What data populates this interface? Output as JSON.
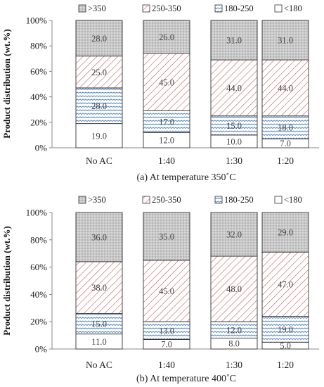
{
  "chart_data": [
    {
      "type": "bar",
      "stacked": true,
      "percent": true,
      "caption": "(a) At temperature 350˚C",
      "ylabel": "Product distribution (wt.%)",
      "yticks": [
        "0%",
        "20%",
        "40%",
        "60%",
        "80%",
        "100%"
      ],
      "ylim": [
        0,
        100
      ],
      "categories": [
        "No AC",
        "1:40",
        "1:30",
        "1:20"
      ],
      "legend": {
        "placement": "top"
      },
      "series": [
        {
          "name": "<180",
          "values": [
            19.0,
            12.0,
            10.0,
            7.0
          ],
          "labels": [
            "19.0",
            "12.0",
            "10.0",
            "7.0"
          ]
        },
        {
          "name": "180-250",
          "values": [
            28.0,
            17.0,
            15.0,
            18.0
          ],
          "labels": [
            "28.0",
            "17.0",
            "15.0",
            "18.0"
          ]
        },
        {
          "name": "250-350",
          "values": [
            25.0,
            45.0,
            44.0,
            44.0
          ],
          "labels": [
            "25.0",
            "45.0",
            "44.0",
            "44.0"
          ]
        },
        {
          "name": ">350",
          "values": [
            28.0,
            26.0,
            31.0,
            31.0
          ],
          "labels": [
            "28.0",
            "26.0",
            "31.0",
            "31.0"
          ]
        }
      ]
    },
    {
      "type": "bar",
      "stacked": true,
      "percent": true,
      "caption": "(b) At temperature 400˚C",
      "ylabel": "Product distribution (wt.%)",
      "yticks": [
        "0%",
        "20%",
        "40%",
        "60%",
        "80%",
        "100%"
      ],
      "ylim": [
        0,
        100
      ],
      "categories": [
        "No AC",
        "1:40",
        "1:30",
        "1:20"
      ],
      "legend": {
        "placement": "top"
      },
      "series": [
        {
          "name": "<180",
          "values": [
            11.0,
            7.0,
            8.0,
            5.0
          ],
          "labels": [
            "11.0",
            "7.0",
            "8.0",
            "5.0"
          ]
        },
        {
          "name": "180-250",
          "values": [
            15.0,
            13.0,
            12.0,
            19.0
          ],
          "labels": [
            "15.0",
            "13.0",
            "12.0",
            "19.0"
          ]
        },
        {
          "name": "250-350",
          "values": [
            38.0,
            45.0,
            48.0,
            47.0
          ],
          "labels": [
            "38.0",
            "45.0",
            "48.0",
            "47.0"
          ]
        },
        {
          "name": ">350",
          "values": [
            36.0,
            35.0,
            32.0,
            29.0
          ],
          "labels": [
            "36.0",
            "35.0",
            "32.0",
            "29.0"
          ]
        }
      ]
    }
  ],
  "colors": {
    "gt350_fill": "#c8c8c8",
    "b250_fill": "#ffffff",
    "b250_stroke": "#c0504d",
    "b180_fill": "#ffffff",
    "b180_stroke": "#4f81bd",
    "lt180_fill": "#ffffff",
    "bar_border": "#333333"
  }
}
